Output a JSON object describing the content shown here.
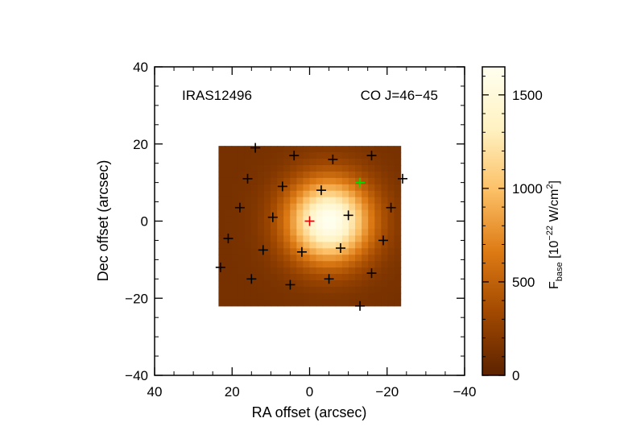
{
  "chart_data": {
    "type": "heatmap",
    "source_name": "IRAS12496",
    "line_name": "CO J=46−45",
    "xlabel": "RA offset (arcsec)",
    "ylabel": "Dec offset (arcsec)",
    "xlim": [
      40,
      -40
    ],
    "ylim": [
      -40,
      40
    ],
    "x_ticks": [
      40,
      20,
      0,
      -20,
      -40
    ],
    "y_ticks": [
      -40,
      -20,
      0,
      20,
      40
    ],
    "x_tick_labels": [
      "40",
      "20",
      "0",
      "−20",
      "−40"
    ],
    "y_tick_labels": [
      "−40",
      "−20",
      "0",
      "20",
      "40"
    ],
    "map_extent": {
      "ra": [
        23.5,
        -23.5
      ],
      "dec": [
        -22,
        19.5
      ]
    },
    "emission_peak": {
      "ra": -5,
      "dec": 0,
      "value": 1650
    },
    "emission_sigma": {
      "ra": 7.5,
      "dec": 7.5
    },
    "colorbar": {
      "label_main": "F",
      "label_sub": "base",
      "label_units": " [10",
      "label_exp1": "−22",
      "label_units2": " W/cm",
      "label_exp2": "2",
      "label_close": "]",
      "ticks": [
        0,
        500,
        1000,
        1500
      ],
      "tick_labels": [
        "0",
        "500",
        "1000",
        "1500"
      ],
      "range": [
        0,
        1650
      ],
      "colors": [
        "#5c2200",
        "#a04800",
        "#dd7a14",
        "#fcc066",
        "#fff2c2",
        "#fffff0"
      ]
    },
    "markers": {
      "reference": {
        "ra": 0,
        "dec": 0,
        "color": "#e00000"
      },
      "secondary": {
        "ra": -13,
        "dec": 10,
        "color": "#00e000"
      },
      "spaxels": [
        {
          "ra": 14,
          "dec": 19
        },
        {
          "ra": 4,
          "dec": 17
        },
        {
          "ra": -6,
          "dec": 16
        },
        {
          "ra": -16,
          "dec": 17
        },
        {
          "ra": 16,
          "dec": 11
        },
        {
          "ra": 7,
          "dec": 9
        },
        {
          "ra": -3,
          "dec": 8
        },
        {
          "ra": -24,
          "dec": 11
        },
        {
          "ra": 18,
          "dec": 3.5
        },
        {
          "ra": 9.5,
          "dec": 1
        },
        {
          "ra": -10,
          "dec": 1.5
        },
        {
          "ra": -21,
          "dec": 3.5
        },
        {
          "ra": 21,
          "dec": -4.5
        },
        {
          "ra": 12,
          "dec": -7.5
        },
        {
          "ra": 2,
          "dec": -8
        },
        {
          "ra": -8,
          "dec": -7
        },
        {
          "ra": -19,
          "dec": -5
        },
        {
          "ra": 23,
          "dec": -12
        },
        {
          "ra": 15,
          "dec": -15
        },
        {
          "ra": 5,
          "dec": -16.5
        },
        {
          "ra": -5,
          "dec": -15
        },
        {
          "ra": -16,
          "dec": -13.5
        },
        {
          "ra": -13,
          "dec": -22
        }
      ],
      "color": "#000000"
    }
  }
}
